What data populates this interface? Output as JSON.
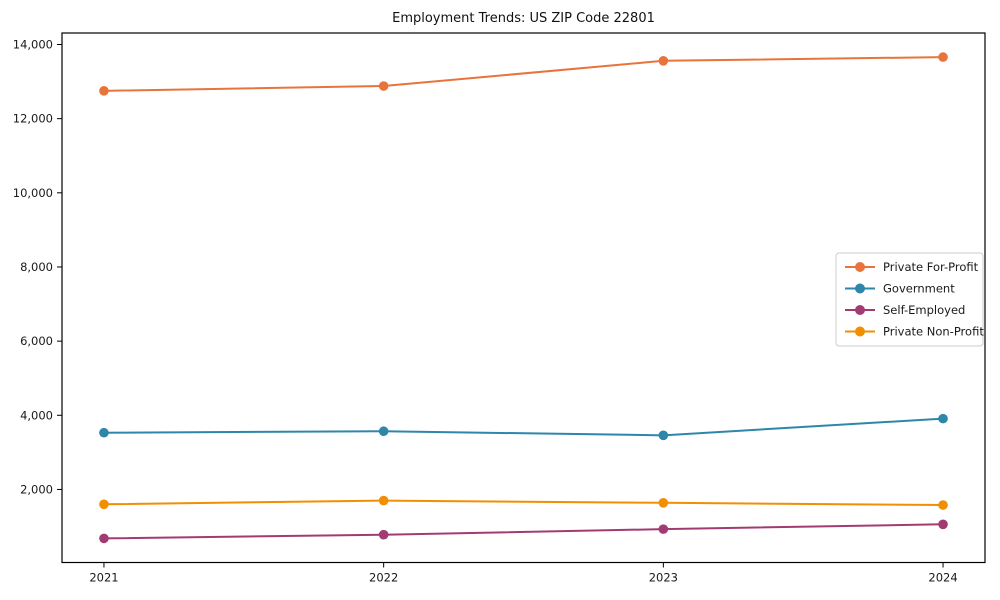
{
  "chart_data": {
    "type": "line",
    "title": "Employment Trends: US ZIP Code 22801",
    "xlabel": "",
    "ylabel": "",
    "x": [
      2021,
      2022,
      2023,
      2024
    ],
    "x_tick_labels": [
      "2021",
      "2022",
      "2023",
      "2024"
    ],
    "y_ticks": [
      2000,
      4000,
      6000,
      8000,
      10000,
      12000,
      14000
    ],
    "y_tick_labels": [
      "2,000",
      "4,000",
      "6,000",
      "8,000",
      "10,000",
      "12,000",
      "14,000"
    ],
    "xlim": [
      2020.85,
      2024.15
    ],
    "ylim": [
      30,
      14310
    ],
    "grid": false,
    "legend_position": "center-right",
    "axis_color": "#000000",
    "text_color": "#1a1a1a",
    "series": [
      {
        "name": "Private For-Profit",
        "color": "#E8743B",
        "values": [
          12750,
          12880,
          13560,
          13660
        ]
      },
      {
        "name": "Government",
        "color": "#2E86AB",
        "values": [
          3530,
          3570,
          3460,
          3910
        ]
      },
      {
        "name": "Self-Employed",
        "color": "#A23B72",
        "values": [
          680,
          780,
          930,
          1060
        ]
      },
      {
        "name": "Private Non-Profit",
        "color": "#F18F01",
        "values": [
          1600,
          1700,
          1640,
          1580
        ]
      }
    ]
  }
}
